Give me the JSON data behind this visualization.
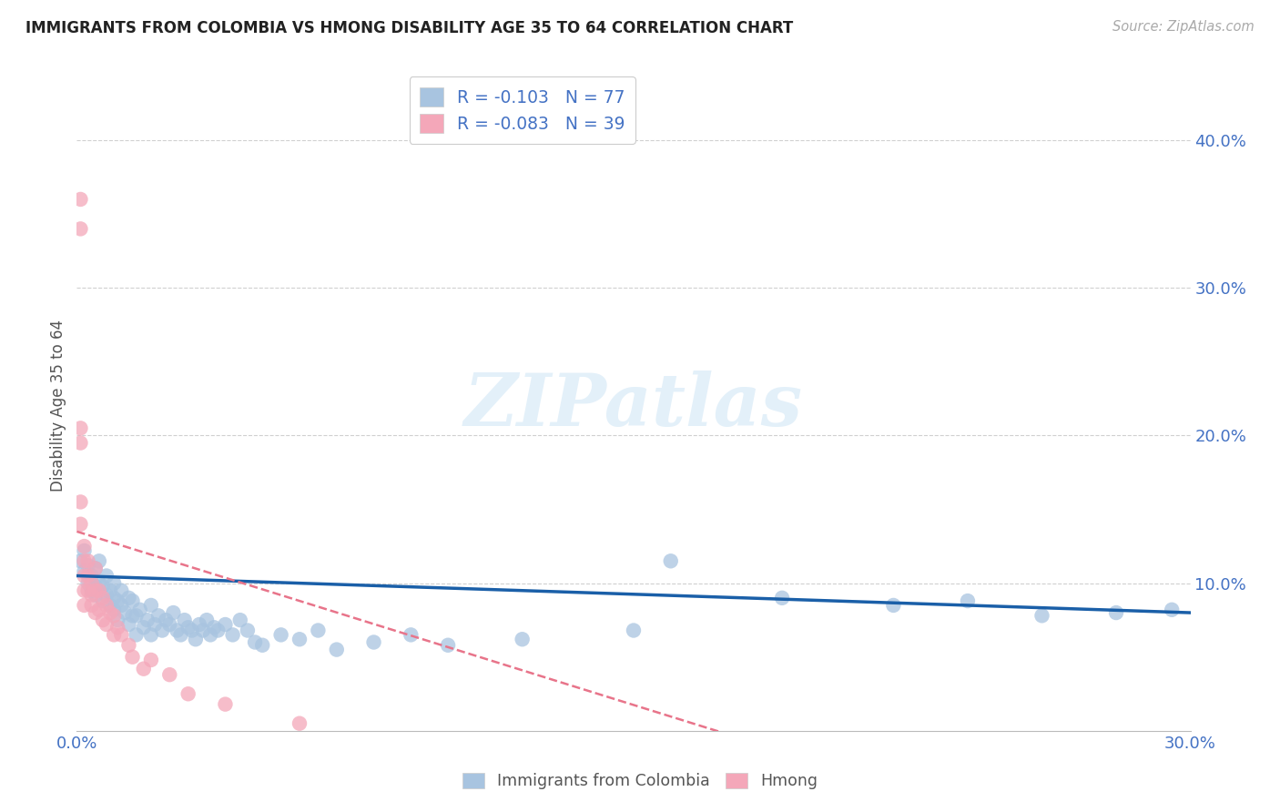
{
  "title": "IMMIGRANTS FROM COLOMBIA VS HMONG DISABILITY AGE 35 TO 64 CORRELATION CHART",
  "source": "Source: ZipAtlas.com",
  "ylabel": "Disability Age 35 to 64",
  "xlim": [
    0.0,
    0.3
  ],
  "ylim": [
    0.0,
    0.44
  ],
  "legend_labels": [
    "Immigrants from Colombia",
    "Hmong"
  ],
  "colombia_color": "#a8c4e0",
  "hmong_color": "#f4a7b9",
  "colombia_line_color": "#1a5fa8",
  "hmong_line_color": "#e8748a",
  "colombia_R": -0.103,
  "colombia_N": 77,
  "hmong_R": -0.083,
  "hmong_N": 39,
  "watermark": "ZIPatlas",
  "colombia_x": [
    0.001,
    0.002,
    0.002,
    0.003,
    0.003,
    0.004,
    0.004,
    0.005,
    0.005,
    0.005,
    0.006,
    0.006,
    0.007,
    0.007,
    0.008,
    0.008,
    0.009,
    0.009,
    0.01,
    0.01,
    0.01,
    0.011,
    0.011,
    0.012,
    0.012,
    0.013,
    0.014,
    0.014,
    0.015,
    0.015,
    0.016,
    0.016,
    0.017,
    0.018,
    0.019,
    0.02,
    0.02,
    0.021,
    0.022,
    0.023,
    0.024,
    0.025,
    0.026,
    0.027,
    0.028,
    0.029,
    0.03,
    0.031,
    0.032,
    0.033,
    0.034,
    0.035,
    0.036,
    0.037,
    0.038,
    0.04,
    0.042,
    0.044,
    0.046,
    0.048,
    0.05,
    0.055,
    0.06,
    0.065,
    0.07,
    0.08,
    0.09,
    0.1,
    0.12,
    0.15,
    0.16,
    0.19,
    0.22,
    0.24,
    0.26,
    0.28,
    0.295
  ],
  "colombia_y": [
    0.115,
    0.108,
    0.122,
    0.1,
    0.112,
    0.095,
    0.105,
    0.098,
    0.11,
    0.092,
    0.1,
    0.115,
    0.088,
    0.098,
    0.092,
    0.105,
    0.085,
    0.095,
    0.09,
    0.082,
    0.1,
    0.088,
    0.075,
    0.085,
    0.095,
    0.08,
    0.072,
    0.09,
    0.078,
    0.088,
    0.065,
    0.078,
    0.082,
    0.07,
    0.075,
    0.065,
    0.085,
    0.072,
    0.078,
    0.068,
    0.075,
    0.072,
    0.08,
    0.068,
    0.065,
    0.075,
    0.07,
    0.068,
    0.062,
    0.072,
    0.068,
    0.075,
    0.065,
    0.07,
    0.068,
    0.072,
    0.065,
    0.075,
    0.068,
    0.06,
    0.058,
    0.065,
    0.062,
    0.068,
    0.055,
    0.06,
    0.065,
    0.058,
    0.062,
    0.068,
    0.115,
    0.09,
    0.085,
    0.088,
    0.078,
    0.08,
    0.082
  ],
  "hmong_x": [
    0.001,
    0.001,
    0.001,
    0.001,
    0.001,
    0.001,
    0.002,
    0.002,
    0.002,
    0.002,
    0.002,
    0.003,
    0.003,
    0.003,
    0.004,
    0.004,
    0.004,
    0.005,
    0.005,
    0.005,
    0.006,
    0.006,
    0.007,
    0.007,
    0.008,
    0.008,
    0.009,
    0.01,
    0.01,
    0.011,
    0.012,
    0.014,
    0.015,
    0.018,
    0.02,
    0.025,
    0.03,
    0.04,
    0.06
  ],
  "hmong_y": [
    0.36,
    0.34,
    0.205,
    0.195,
    0.155,
    0.14,
    0.125,
    0.115,
    0.105,
    0.095,
    0.085,
    0.115,
    0.105,
    0.095,
    0.1,
    0.092,
    0.085,
    0.11,
    0.095,
    0.08,
    0.095,
    0.082,
    0.09,
    0.075,
    0.085,
    0.072,
    0.08,
    0.078,
    0.065,
    0.07,
    0.065,
    0.058,
    0.05,
    0.042,
    0.048,
    0.038,
    0.025,
    0.018,
    0.005
  ]
}
